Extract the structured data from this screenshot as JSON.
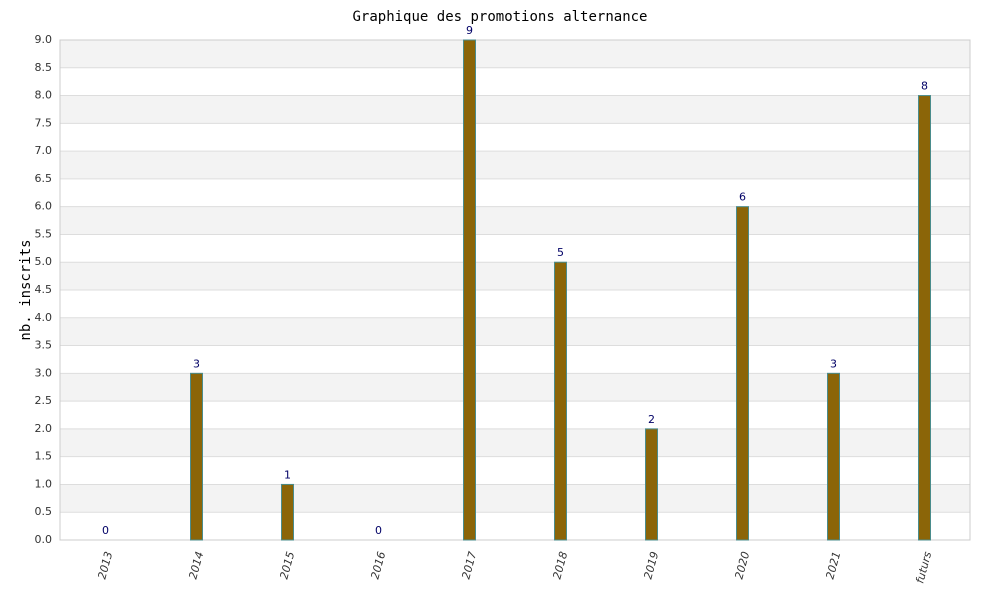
{
  "chart_data": {
    "type": "bar",
    "title": "Graphique des promotions alternance",
    "y_label": "nb. inscrits",
    "categories": [
      "2013",
      "2014",
      "2015",
      "2016",
      "2017",
      "2018",
      "2019",
      "2020",
      "2021",
      "futurs"
    ],
    "values": [
      0,
      3,
      1,
      0,
      9,
      5,
      2,
      6,
      3,
      8
    ],
    "color": "#8b6508",
    "edge_color": "#4a8c8c",
    "ylim": [
      0,
      9
    ],
    "yticks": [
      {
        "value": 0,
        "label": "0.0"
      },
      {
        "value": 0.5,
        "label": "0.5"
      },
      {
        "value": 1,
        "label": "1.0"
      },
      {
        "value": 1.5,
        "label": "1.5"
      },
      {
        "value": 2,
        "label": "2.0"
      },
      {
        "value": 2.5,
        "label": "2.5"
      },
      {
        "value": 3,
        "label": "3.0"
      },
      {
        "value": 3.5,
        "label": "3.5"
      },
      {
        "value": 4,
        "label": "4.0"
      },
      {
        "value": 4.5,
        "label": "4.5"
      },
      {
        "value": 5,
        "label": "5.0"
      },
      {
        "value": 5.5,
        "label": "5.5"
      },
      {
        "value": 6,
        "label": "6.0"
      },
      {
        "value": 6.5,
        "label": "6.5"
      },
      {
        "value": 7,
        "label": "7.0"
      },
      {
        "value": 7.5,
        "label": "7.5"
      },
      {
        "value": 8,
        "label": "8.0"
      },
      {
        "value": 8.5,
        "label": "8.5"
      },
      {
        "value": 9,
        "label": "9.0"
      }
    ],
    "grid": true
  }
}
